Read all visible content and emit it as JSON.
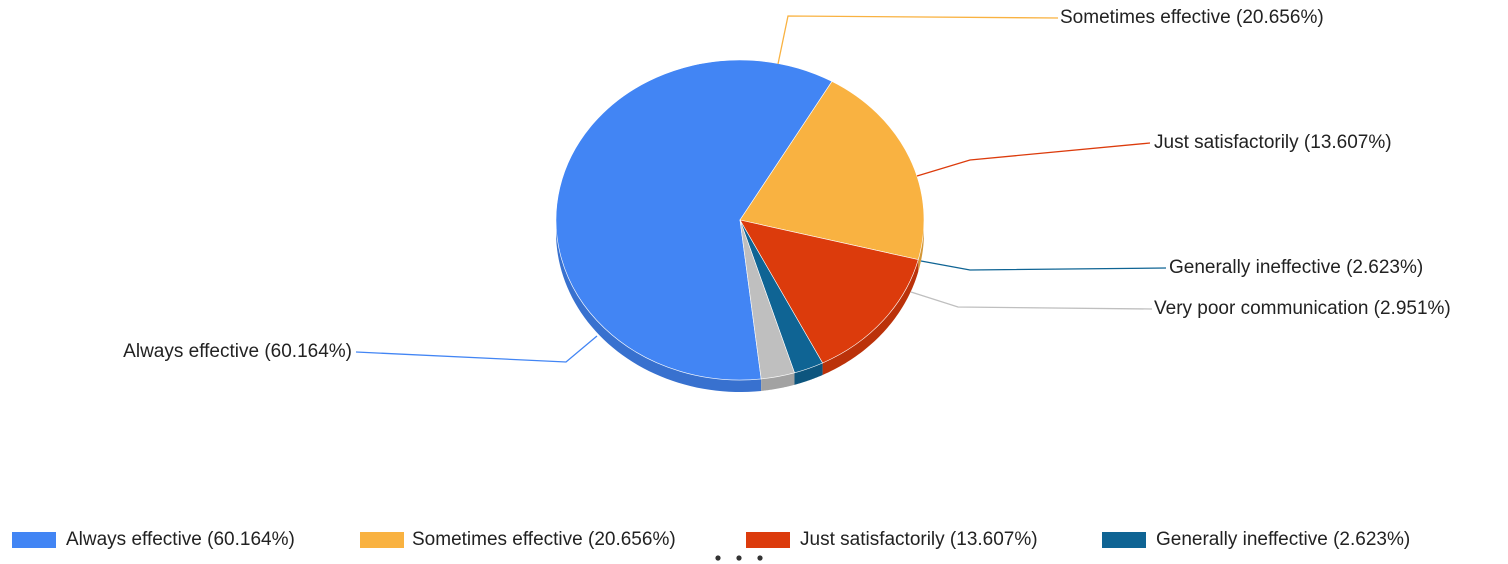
{
  "chart_data": {
    "type": "pie",
    "three_d": true,
    "slices": [
      {
        "label": "Always effective",
        "value": 60.164,
        "display": "Always effective (60.164%)",
        "color": "#4285f4"
      },
      {
        "label": "Sometimes effective",
        "value": 20.656,
        "display": "Sometimes effective (20.656%)",
        "color": "#f9b241"
      },
      {
        "label": "Just satisfactorily",
        "value": 13.607,
        "display": "Just satisfactorily (13.607%)",
        "color": "#dc3b0c"
      },
      {
        "label": "Generally ineffective",
        "value": 2.623,
        "display": "Generally ineffective (2.623%)",
        "color": "#0f6494"
      },
      {
        "label": "Very poor communication",
        "value": 2.951,
        "display": "Very poor communication (2.951%)",
        "color": "#bfbfbf"
      }
    ],
    "legend": {
      "placement": "bottom",
      "visible_items": [
        "Always effective (60.164%)",
        "Sometimes effective (20.656%)",
        "Just satisfactorily (13.607%)",
        "Generally ineffective (2.623%)"
      ],
      "has_more_indicator": true
    }
  }
}
